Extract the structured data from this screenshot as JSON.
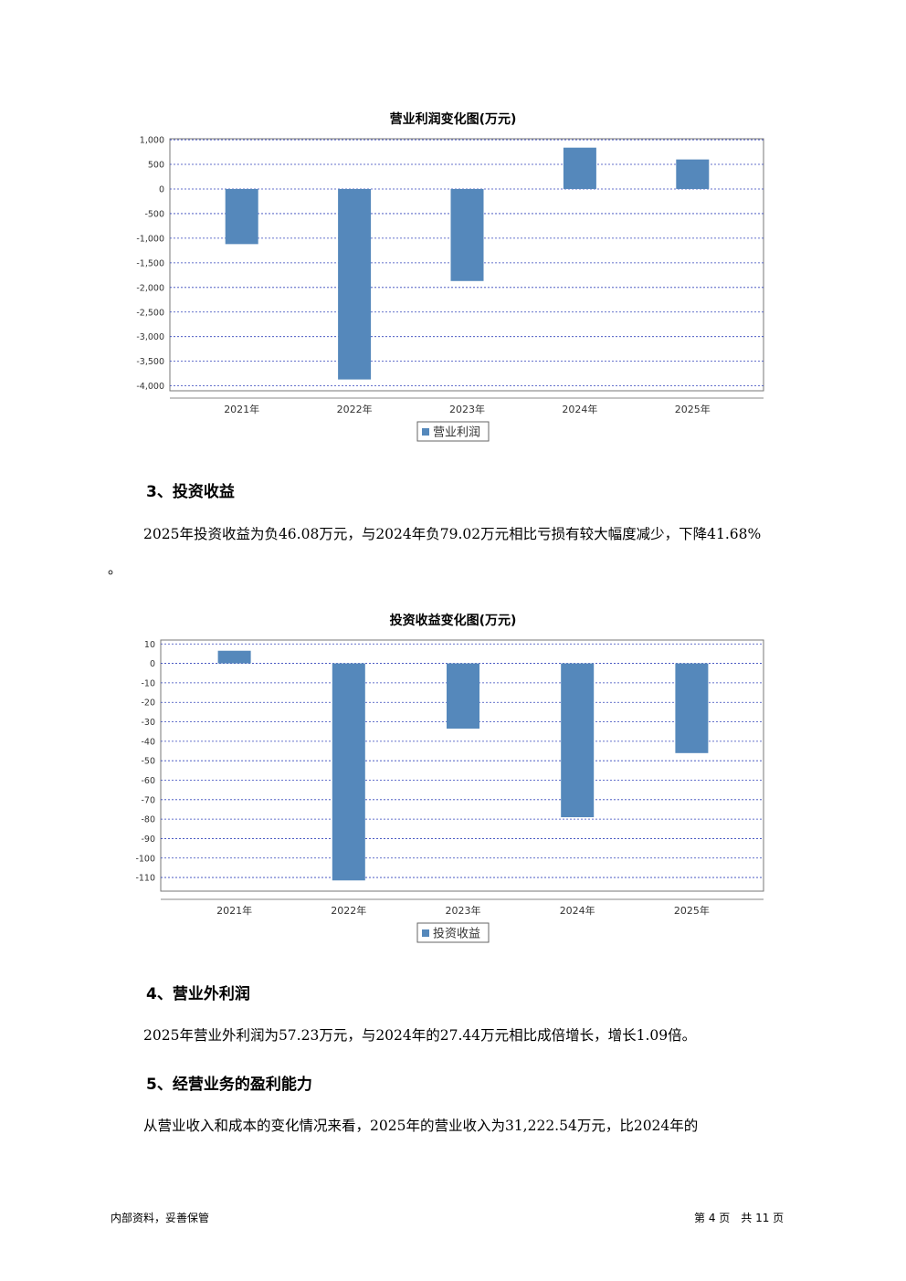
{
  "chart_data": [
    {
      "type": "bar",
      "title": "营业利润变化图(万元)",
      "categories": [
        "2021年",
        "2022年",
        "2023年",
        "2024年",
        "2025年"
      ],
      "series": [
        {
          "name": "营业利润",
          "values": [
            -1120,
            -3870,
            -1870,
            840,
            600
          ]
        }
      ],
      "yticks": [
        1000,
        500,
        0,
        -500,
        -1000,
        -1500,
        -2000,
        -2500,
        -3000,
        -3500,
        -4000
      ],
      "ytick_labels": [
        "1,000",
        "500",
        "0",
        "-500",
        "-1,000",
        "-1,500",
        "-2,000",
        "-2,500",
        "-3,000",
        "-3,500",
        "-4,000"
      ],
      "ylim": [
        -4100,
        1020
      ],
      "grid": true,
      "legend": "bottom-center",
      "color": "#5588bb"
    },
    {
      "type": "bar",
      "title": "投资收益变化图(万元)",
      "categories": [
        "2021年",
        "2022年",
        "2023年",
        "2024年",
        "2025年"
      ],
      "series": [
        {
          "name": "投资收益",
          "values": [
            6.5,
            -111.5,
            -33.5,
            -79.02,
            -46.08
          ]
        }
      ],
      "yticks": [
        10,
        0,
        -10,
        -20,
        -30,
        -40,
        -50,
        -60,
        -70,
        -80,
        -90,
        -100,
        -110
      ],
      "ytick_labels": [
        "10",
        "0",
        "-10",
        "-20",
        "-30",
        "-40",
        "-50",
        "-60",
        "-70",
        "-80",
        "-90",
        "-100",
        "-110"
      ],
      "ylim": [
        -117,
        12
      ],
      "grid": true,
      "legend": "bottom-center",
      "color": "#5588bb"
    }
  ],
  "sections": {
    "s3_heading": "3、投资收益",
    "s3_text_line1": "2025年投资收益为负46.08万元，与2024年负79.02万元相比亏损有较大幅度减少，下降41.68%",
    "s3_text_line2": "。",
    "s4_heading": "4、营业外利润",
    "s4_text": "2025年营业外利润为57.23万元，与2024年的27.44万元相比成倍增长，增长1.09倍。",
    "s5_heading": "5、经营业务的盈利能力",
    "s5_text": "从营业收入和成本的变化情况来看，2025年的营业收入为31,222.54万元，比2024年的"
  },
  "footer": {
    "left": "内部资料，妥善保管",
    "page": "第 4 页　共 11 页"
  }
}
